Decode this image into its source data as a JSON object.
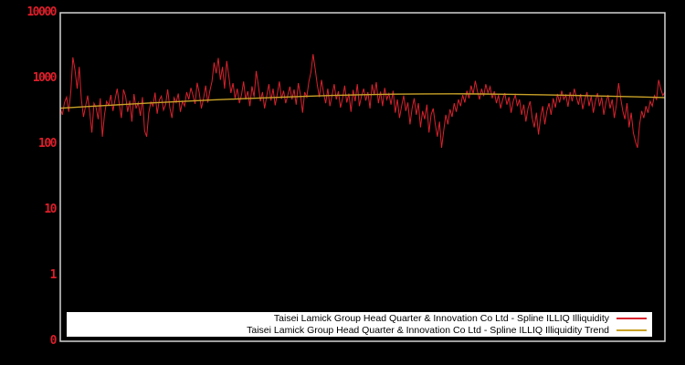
{
  "colors": {
    "background": "#000000",
    "plot_border": "#d4d4d4",
    "tick_label": "#dd1e2a",
    "legend_bg": "#ffffff",
    "legend_text": "#000000",
    "series_red": "#d8222d",
    "trend_yellow": "#c9a227"
  },
  "chart_data": {
    "type": "line",
    "title": "",
    "xlabel": "",
    "ylabel": "",
    "yscale": "log",
    "ylim": [
      0.1,
      10000
    ],
    "xtick_labels": [],
    "ytick_labels": [
      "10000",
      "1000",
      "100",
      "10",
      "1",
      "0"
    ],
    "grid": false,
    "legend_position": "lower-right-inside",
    "plot_bg": "#000000",
    "series": [
      {
        "name": "Taisei Lamick Group Head Quarter & Innovation Co Ltd - Spline ILLIQ Illiquidity",
        "color": "#d8222d",
        "stroke_width": 1,
        "values": [
          350,
          280,
          430,
          520,
          310,
          620,
          2100,
          1350,
          700,
          1500,
          480,
          260,
          380,
          550,
          300,
          150,
          420,
          360,
          240,
          500,
          130,
          280,
          450,
          390,
          560,
          320,
          480,
          700,
          410,
          250,
          680,
          540,
          310,
          460,
          220,
          580,
          350,
          430,
          270,
          520,
          160,
          130,
          300,
          440,
          380,
          610,
          290,
          470,
          540,
          330,
          400,
          680,
          360,
          250,
          510,
          430,
          590,
          310,
          450,
          380,
          620,
          480,
          720,
          550,
          410,
          860,
          600,
          350,
          500,
          780,
          430,
          650,
          900,
          1750,
          1200,
          2050,
          950,
          1500,
          700,
          1850,
          1100,
          600,
          850,
          500,
          700,
          420,
          560,
          900,
          480,
          640,
          380,
          760,
          520,
          1300,
          800,
          450,
          620,
          350,
          540,
          820,
          460,
          700,
          390,
          580,
          900,
          490,
          650,
          420,
          560,
          750,
          480,
          680,
          400,
          850,
          560,
          300,
          620,
          520,
          900,
          1250,
          2350,
          1400,
          800,
          520,
          950,
          600,
          420,
          700,
          380,
          560,
          820,
          480,
          640,
          360,
          500,
          780,
          430,
          590,
          310,
          670,
          450,
          820,
          380,
          540,
          700,
          460,
          620,
          350,
          810,
          560,
          880,
          420,
          630,
          380,
          720,
          480,
          590,
          400,
          650,
          300,
          480,
          250,
          380,
          550,
          320,
          430,
          200,
          350,
          500,
          280,
          420,
          180,
          320,
          240,
          400,
          150,
          280,
          350,
          200,
          130,
          220,
          88,
          160,
          280,
          200,
          340,
          260,
          420,
          310,
          480,
          380,
          560,
          430,
          650,
          500,
          780,
          580,
          920,
          640,
          480,
          700,
          540,
          820,
          600,
          750,
          500,
          640,
          420,
          560,
          350,
          480,
          600,
          400,
          520,
          300,
          450,
          560,
          380,
          480,
          280,
          400,
          220,
          350,
          450,
          250,
          180,
          300,
          140,
          260,
          380,
          200,
          320,
          420,
          280,
          500,
          360,
          580,
          430,
          650,
          480,
          560,
          370,
          620,
          450,
          700,
          520,
          400,
          580,
          340,
          480,
          620,
          380,
          540,
          300,
          450,
          600,
          380,
          520,
          280,
          430,
          560,
          350,
          480,
          250,
          400,
          850,
          500,
          320,
          240,
          420,
          180,
          300,
          150,
          110,
          88,
          200,
          320,
          250,
          380,
          300,
          450,
          380,
          550,
          480,
          950,
          700,
          550,
          620
        ]
      },
      {
        "name": "Taisei Lamick Group Head Quarter & Innovation Co Ltd - Spline ILLIQ Illiquidity Trend",
        "color": "#c9a227",
        "stroke_width": 1.4,
        "values": [
          352,
          376,
          400,
          424,
          447,
          470,
          492,
          513,
          533,
          551,
          566,
          577,
          583,
          584,
          581,
          574,
          564,
          552,
          539,
          525,
          512
        ]
      }
    ]
  }
}
